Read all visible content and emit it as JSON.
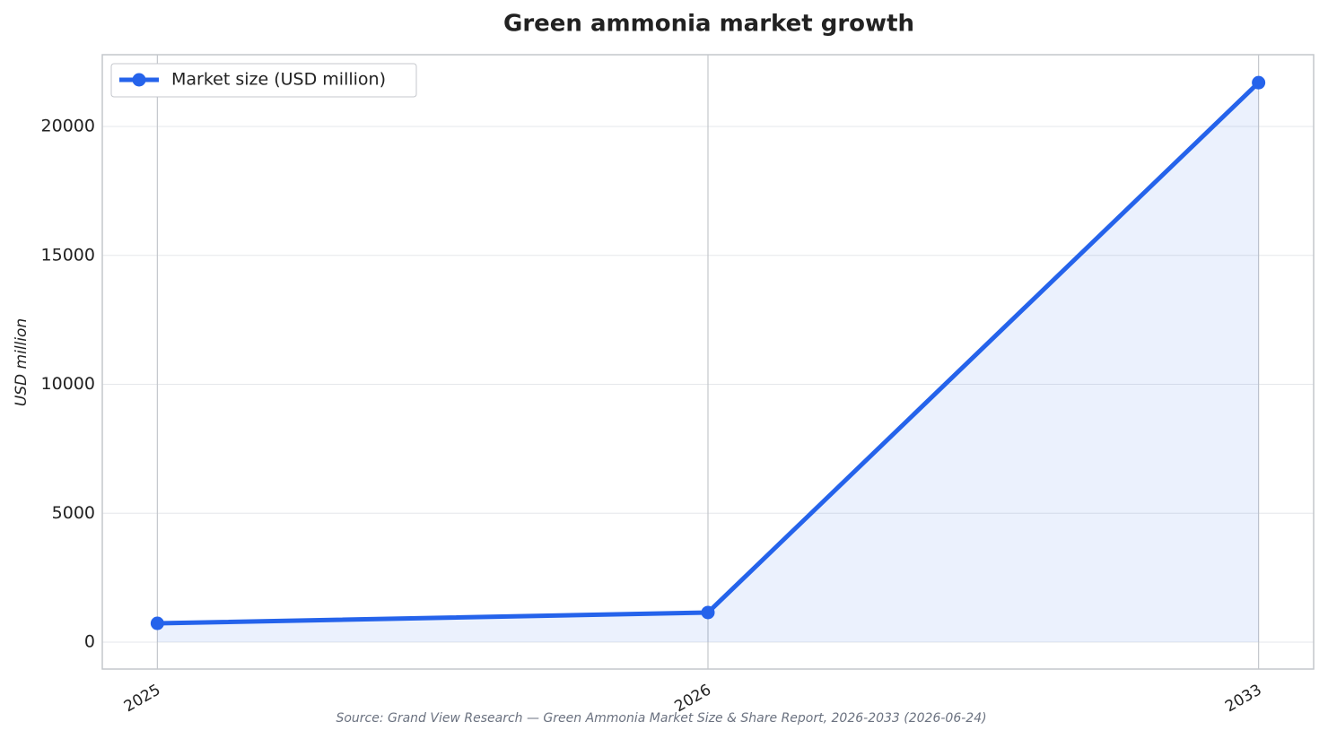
{
  "chart_data": {
    "type": "line",
    "title": "Green ammonia market growth",
    "y_label": "USD million",
    "source": "Source: Grand View Research — Green Ammonia Market Size & Share Report, 2026-2033 (2026-06-24)",
    "categories": [
      "2025",
      "2026",
      "2033"
    ],
    "series": [
      {
        "name": "Market size (USD million)",
        "color": "#2563eb",
        "values": [
          730,
          1150,
          21700
        ]
      }
    ],
    "ylim": [
      -1043,
      22783
    ],
    "yticks": [
      0,
      5000,
      10000,
      15000,
      20000
    ],
    "grid": true,
    "legend": "upper left"
  }
}
